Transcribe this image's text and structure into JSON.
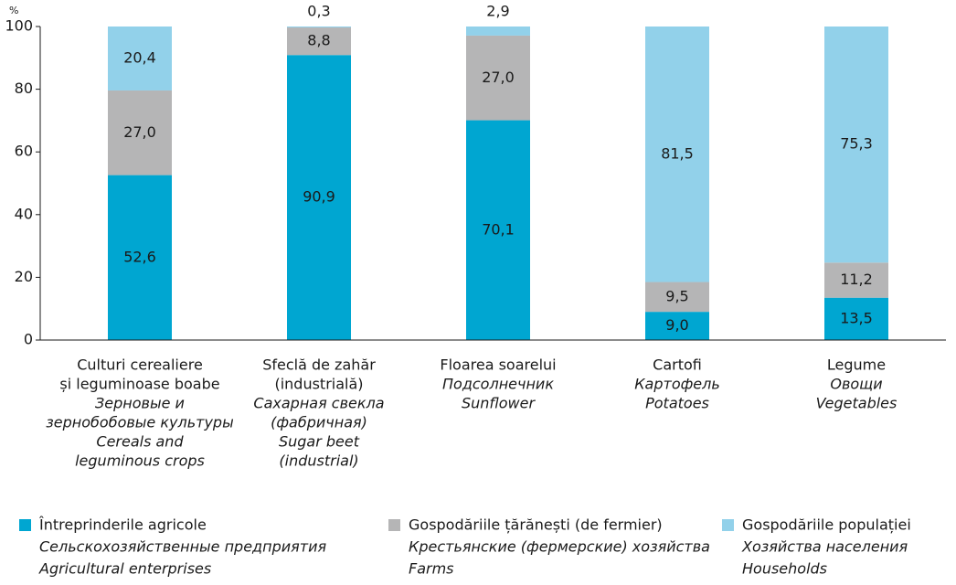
{
  "chart_data": {
    "type": "stacked_bar",
    "y_label": "%",
    "categories": [
      {
        "ro": [
          "Culturi cerealiere",
          "și leguminoase boabe"
        ],
        "ru": [
          "Зерновые и",
          "зернобобовые культуры"
        ],
        "en": [
          "Cereals and",
          "leguminous crops"
        ]
      },
      {
        "ro": [
          "Sfeclă de zahăr",
          "(industrială)"
        ],
        "ru": [
          "Сахарная свекла",
          "(фабричная)"
        ],
        "en": [
          "Sugar beet",
          "(industrial)"
        ]
      },
      {
        "ro": [
          "Floarea soarelui"
        ],
        "ru": [
          "Подсолнечник"
        ],
        "en": [
          "Sunflower"
        ]
      },
      {
        "ro": [
          "Cartofi"
        ],
        "ru": [
          "Картофель"
        ],
        "en": [
          "Potatoes"
        ]
      },
      {
        "ro": [
          "Legume"
        ],
        "ru": [
          "Овощи"
        ],
        "en": [
          "Vegetables"
        ]
      }
    ],
    "series": [
      {
        "name": {
          "ro": "Întreprinderile agricole",
          "ru": "Сельскохозяйственные предприятия",
          "en": "Agricultural enterprises"
        },
        "color": "#00a6d1",
        "values": [
          52.6,
          90.9,
          70.1,
          9.0,
          13.5
        ],
        "value_labels": [
          "52,6",
          "90,9",
          "70,1",
          "9,0",
          "13,5"
        ]
      },
      {
        "name": {
          "ro": "Gospodăriile țărănești (de fermier)",
          "ru": "Крестьянские (фермерские) хозяйства",
          "en": "Farms"
        },
        "color": "#b5b5b6",
        "values": [
          27.0,
          8.8,
          27.0,
          9.5,
          11.2
        ],
        "value_labels": [
          "27,0",
          "8,8",
          "27,0",
          "9,5",
          "11,2"
        ]
      },
      {
        "name": {
          "ro": "Gospodăriile populației",
          "ru": "Хозяйства населения",
          "en": "Households"
        },
        "color": "#92d1ea",
        "values": [
          20.4,
          0.3,
          2.9,
          81.5,
          75.3
        ],
        "value_labels": [
          "20,4",
          "0,3",
          "2,9",
          "81,5",
          "75,3"
        ]
      }
    ],
    "ylim": [
      0,
      100
    ],
    "yticks": [
      0,
      20,
      40,
      60,
      80,
      100
    ],
    "grid": false
  }
}
